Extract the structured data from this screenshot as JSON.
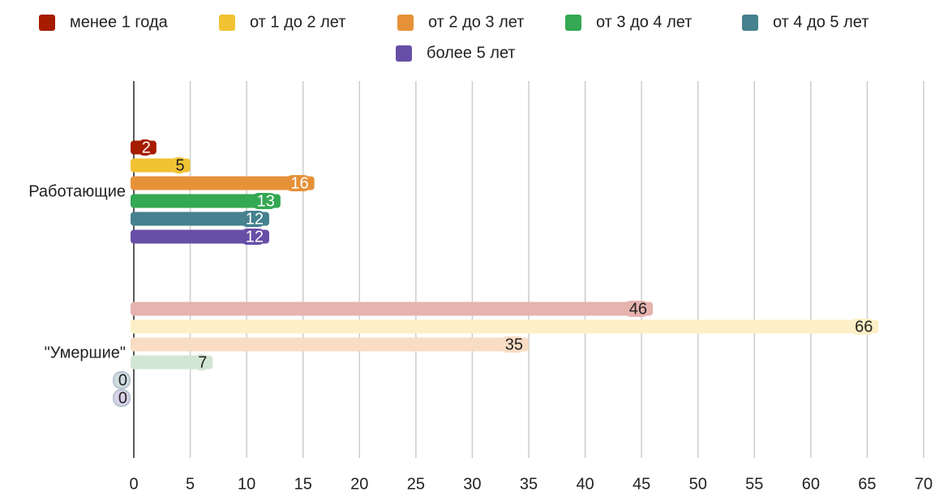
{
  "chart_data": {
    "type": "hbar",
    "categories": [
      "Работающие",
      "\"Умершие\""
    ],
    "series": [
      {
        "name": "менее 1 года",
        "color": "#a61c00",
        "colors": [
          "#a61c00",
          "#e6b3ae"
        ],
        "values": [
          2,
          46
        ]
      },
      {
        "name": "от 1 до 2 лет",
        "color": "#f1c232",
        "colors": [
          "#f1c232",
          "#fdefc7"
        ],
        "values": [
          5,
          66
        ]
      },
      {
        "name": "от 2 до 3 лет",
        "color": "#e69138",
        "colors": [
          "#e69138",
          "#f8dcc4"
        ],
        "values": [
          16,
          35
        ]
      },
      {
        "name": "от 3 до 4 лет",
        "color": "#34a853",
        "colors": [
          "#34a853",
          "#d3e6d4"
        ],
        "values": [
          13,
          7
        ]
      },
      {
        "name": "от 4 до 5 лет",
        "color": "#45818e",
        "colors": [
          "#45818e",
          "#cfdde0"
        ],
        "values": [
          12,
          0
        ]
      },
      {
        "name": "более 5 лет",
        "color": "#674ea7",
        "colors": [
          "#674ea7",
          "#d9d2ea"
        ],
        "values": [
          12,
          0
        ]
      }
    ],
    "xlim": [
      0,
      70
    ],
    "xticks": [
      0,
      5,
      10,
      15,
      20,
      25,
      30,
      35,
      40,
      45,
      50,
      55,
      60,
      65,
      70
    ],
    "grid": true,
    "legend": "top"
  }
}
